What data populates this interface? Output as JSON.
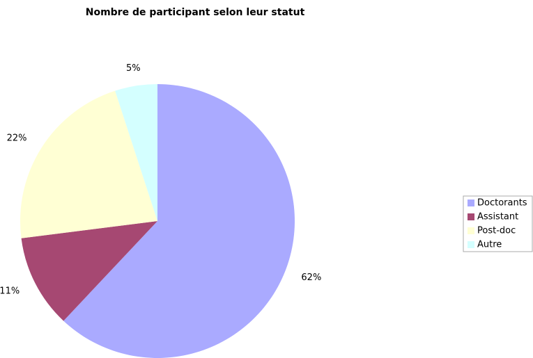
{
  "chart_data": {
    "type": "pie",
    "title": "Nombre de participant selon leur statut",
    "categories": [
      "Doctorants",
      "Assistant",
      "Post-doc",
      "Autre"
    ],
    "values": [
      62,
      11,
      22,
      5
    ],
    "value_labels": [
      "62%",
      "11%",
      "22%",
      "5%"
    ],
    "colors": [
      "#aaaaff",
      "#a64872",
      "#ffffd4",
      "#d4ffff"
    ],
    "legend": "right"
  }
}
